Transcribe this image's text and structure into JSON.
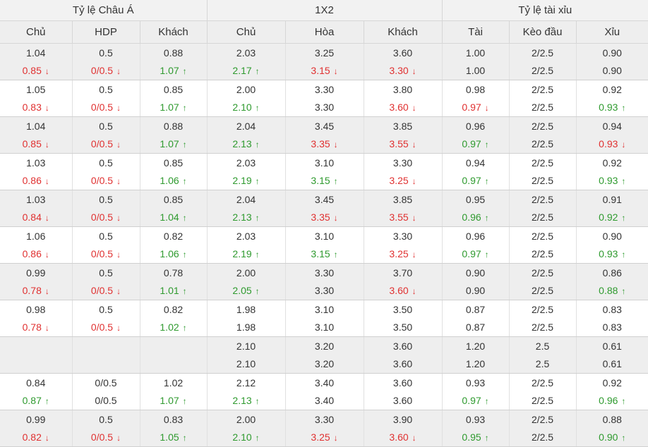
{
  "header": {
    "groups": [
      "Tỷ lệ Châu Á",
      "1X2",
      "Tỷ lệ tài xỉu"
    ],
    "columns": [
      "Chủ",
      "HDP",
      "Khách",
      "Chủ",
      "Hòa",
      "Khách",
      "Tài",
      "Kèo đầu",
      "Xỉu"
    ]
  },
  "colors": {
    "up": "#2e9a2e",
    "down": "#e03030"
  },
  "rows": [
    [
      [
        {
          "v": "1.04"
        },
        {
          "v": "0.5"
        },
        {
          "v": "0.88"
        },
        {
          "v": "2.03"
        },
        {
          "v": "3.25"
        },
        {
          "v": "3.60"
        },
        {
          "v": "1.00"
        },
        {
          "v": "2/2.5"
        },
        {
          "v": "0.90"
        }
      ],
      [
        {
          "v": "0.85",
          "d": "down"
        },
        {
          "v": "0/0.5",
          "d": "down"
        },
        {
          "v": "1.07",
          "d": "up"
        },
        {
          "v": "2.17",
          "d": "up"
        },
        {
          "v": "3.15",
          "d": "down"
        },
        {
          "v": "3.30",
          "d": "down"
        },
        {
          "v": "1.00"
        },
        {
          "v": "2/2.5"
        },
        {
          "v": "0.90"
        }
      ]
    ],
    [
      [
        {
          "v": "1.05"
        },
        {
          "v": "0.5"
        },
        {
          "v": "0.85"
        },
        {
          "v": "2.00"
        },
        {
          "v": "3.30"
        },
        {
          "v": "3.80"
        },
        {
          "v": "0.98"
        },
        {
          "v": "2/2.5"
        },
        {
          "v": "0.92"
        }
      ],
      [
        {
          "v": "0.83",
          "d": "down"
        },
        {
          "v": "0/0.5",
          "d": "down"
        },
        {
          "v": "1.07",
          "d": "up"
        },
        {
          "v": "2.10",
          "d": "up"
        },
        {
          "v": "3.30"
        },
        {
          "v": "3.60",
          "d": "down"
        },
        {
          "v": "0.97",
          "d": "down"
        },
        {
          "v": "2/2.5"
        },
        {
          "v": "0.93",
          "d": "up"
        }
      ]
    ],
    [
      [
        {
          "v": "1.04"
        },
        {
          "v": "0.5"
        },
        {
          "v": "0.88"
        },
        {
          "v": "2.04"
        },
        {
          "v": "3.45"
        },
        {
          "v": "3.85"
        },
        {
          "v": "0.96"
        },
        {
          "v": "2/2.5"
        },
        {
          "v": "0.94"
        }
      ],
      [
        {
          "v": "0.85",
          "d": "down"
        },
        {
          "v": "0/0.5",
          "d": "down"
        },
        {
          "v": "1.07",
          "d": "up"
        },
        {
          "v": "2.13",
          "d": "up"
        },
        {
          "v": "3.35",
          "d": "down"
        },
        {
          "v": "3.55",
          "d": "down"
        },
        {
          "v": "0.97",
          "d": "up"
        },
        {
          "v": "2/2.5"
        },
        {
          "v": "0.93",
          "d": "down"
        }
      ]
    ],
    [
      [
        {
          "v": "1.03"
        },
        {
          "v": "0.5"
        },
        {
          "v": "0.85"
        },
        {
          "v": "2.03"
        },
        {
          "v": "3.10"
        },
        {
          "v": "3.30"
        },
        {
          "v": "0.94"
        },
        {
          "v": "2/2.5"
        },
        {
          "v": "0.92"
        }
      ],
      [
        {
          "v": "0.86",
          "d": "down"
        },
        {
          "v": "0/0.5",
          "d": "down"
        },
        {
          "v": "1.06",
          "d": "up"
        },
        {
          "v": "2.19",
          "d": "up"
        },
        {
          "v": "3.15",
          "d": "up"
        },
        {
          "v": "3.25",
          "d": "down"
        },
        {
          "v": "0.97",
          "d": "up"
        },
        {
          "v": "2/2.5"
        },
        {
          "v": "0.93",
          "d": "up"
        }
      ]
    ],
    [
      [
        {
          "v": "1.03"
        },
        {
          "v": "0.5"
        },
        {
          "v": "0.85"
        },
        {
          "v": "2.04"
        },
        {
          "v": "3.45"
        },
        {
          "v": "3.85"
        },
        {
          "v": "0.95"
        },
        {
          "v": "2/2.5"
        },
        {
          "v": "0.91"
        }
      ],
      [
        {
          "v": "0.84",
          "d": "down"
        },
        {
          "v": "0/0.5",
          "d": "down"
        },
        {
          "v": "1.04",
          "d": "up"
        },
        {
          "v": "2.13",
          "d": "up"
        },
        {
          "v": "3.35",
          "d": "down"
        },
        {
          "v": "3.55",
          "d": "down"
        },
        {
          "v": "0.96",
          "d": "up"
        },
        {
          "v": "2/2.5"
        },
        {
          "v": "0.92",
          "d": "up"
        }
      ]
    ],
    [
      [
        {
          "v": "1.06"
        },
        {
          "v": "0.5"
        },
        {
          "v": "0.82"
        },
        {
          "v": "2.03"
        },
        {
          "v": "3.10"
        },
        {
          "v": "3.30"
        },
        {
          "v": "0.96"
        },
        {
          "v": "2/2.5"
        },
        {
          "v": "0.90"
        }
      ],
      [
        {
          "v": "0.86",
          "d": "down"
        },
        {
          "v": "0/0.5",
          "d": "down"
        },
        {
          "v": "1.06",
          "d": "up"
        },
        {
          "v": "2.19",
          "d": "up"
        },
        {
          "v": "3.15",
          "d": "up"
        },
        {
          "v": "3.25",
          "d": "down"
        },
        {
          "v": "0.97",
          "d": "up"
        },
        {
          "v": "2/2.5"
        },
        {
          "v": "0.93",
          "d": "up"
        }
      ]
    ],
    [
      [
        {
          "v": "0.99"
        },
        {
          "v": "0.5"
        },
        {
          "v": "0.78"
        },
        {
          "v": "2.00"
        },
        {
          "v": "3.30"
        },
        {
          "v": "3.70"
        },
        {
          "v": "0.90"
        },
        {
          "v": "2/2.5"
        },
        {
          "v": "0.86"
        }
      ],
      [
        {
          "v": "0.78",
          "d": "down"
        },
        {
          "v": "0/0.5",
          "d": "down"
        },
        {
          "v": "1.01",
          "d": "up"
        },
        {
          "v": "2.05",
          "d": "up"
        },
        {
          "v": "3.30"
        },
        {
          "v": "3.60",
          "d": "down"
        },
        {
          "v": "0.90"
        },
        {
          "v": "2/2.5"
        },
        {
          "v": "0.88",
          "d": "up"
        }
      ]
    ],
    [
      [
        {
          "v": "0.98"
        },
        {
          "v": "0.5"
        },
        {
          "v": "0.82"
        },
        {
          "v": "1.98"
        },
        {
          "v": "3.10"
        },
        {
          "v": "3.50"
        },
        {
          "v": "0.87"
        },
        {
          "v": "2/2.5"
        },
        {
          "v": "0.83"
        }
      ],
      [
        {
          "v": "0.78",
          "d": "down"
        },
        {
          "v": "0/0.5",
          "d": "down"
        },
        {
          "v": "1.02",
          "d": "up"
        },
        {
          "v": "1.98"
        },
        {
          "v": "3.10"
        },
        {
          "v": "3.50"
        },
        {
          "v": "0.87"
        },
        {
          "v": "2/2.5"
        },
        {
          "v": "0.83"
        }
      ]
    ],
    [
      [
        {
          "v": ""
        },
        {
          "v": ""
        },
        {
          "v": ""
        },
        {
          "v": "2.10"
        },
        {
          "v": "3.20"
        },
        {
          "v": "3.60"
        },
        {
          "v": "1.20"
        },
        {
          "v": "2.5"
        },
        {
          "v": "0.61"
        }
      ],
      [
        {
          "v": ""
        },
        {
          "v": ""
        },
        {
          "v": ""
        },
        {
          "v": "2.10"
        },
        {
          "v": "3.20"
        },
        {
          "v": "3.60"
        },
        {
          "v": "1.20"
        },
        {
          "v": "2.5"
        },
        {
          "v": "0.61"
        }
      ]
    ],
    [
      [
        {
          "v": "0.84"
        },
        {
          "v": "0/0.5"
        },
        {
          "v": "1.02"
        },
        {
          "v": "2.12"
        },
        {
          "v": "3.40"
        },
        {
          "v": "3.60"
        },
        {
          "v": "0.93"
        },
        {
          "v": "2/2.5"
        },
        {
          "v": "0.92"
        }
      ],
      [
        {
          "v": "0.87",
          "d": "up"
        },
        {
          "v": "0/0.5"
        },
        {
          "v": "1.07",
          "d": "up"
        },
        {
          "v": "2.13",
          "d": "up"
        },
        {
          "v": "3.40"
        },
        {
          "v": "3.60"
        },
        {
          "v": "0.97",
          "d": "up"
        },
        {
          "v": "2/2.5"
        },
        {
          "v": "0.96",
          "d": "up"
        }
      ]
    ],
    [
      [
        {
          "v": "0.99"
        },
        {
          "v": "0.5"
        },
        {
          "v": "0.83"
        },
        {
          "v": "2.00"
        },
        {
          "v": "3.30"
        },
        {
          "v": "3.90"
        },
        {
          "v": "0.93"
        },
        {
          "v": "2/2.5"
        },
        {
          "v": "0.88"
        }
      ],
      [
        {
          "v": "0.82",
          "d": "down"
        },
        {
          "v": "0/0.5",
          "d": "down"
        },
        {
          "v": "1.05",
          "d": "up"
        },
        {
          "v": "2.10",
          "d": "up"
        },
        {
          "v": "3.25",
          "d": "down"
        },
        {
          "v": "3.60",
          "d": "down"
        },
        {
          "v": "0.95",
          "d": "up"
        },
        {
          "v": "2/2.5"
        },
        {
          "v": "0.90",
          "d": "up"
        }
      ]
    ]
  ]
}
